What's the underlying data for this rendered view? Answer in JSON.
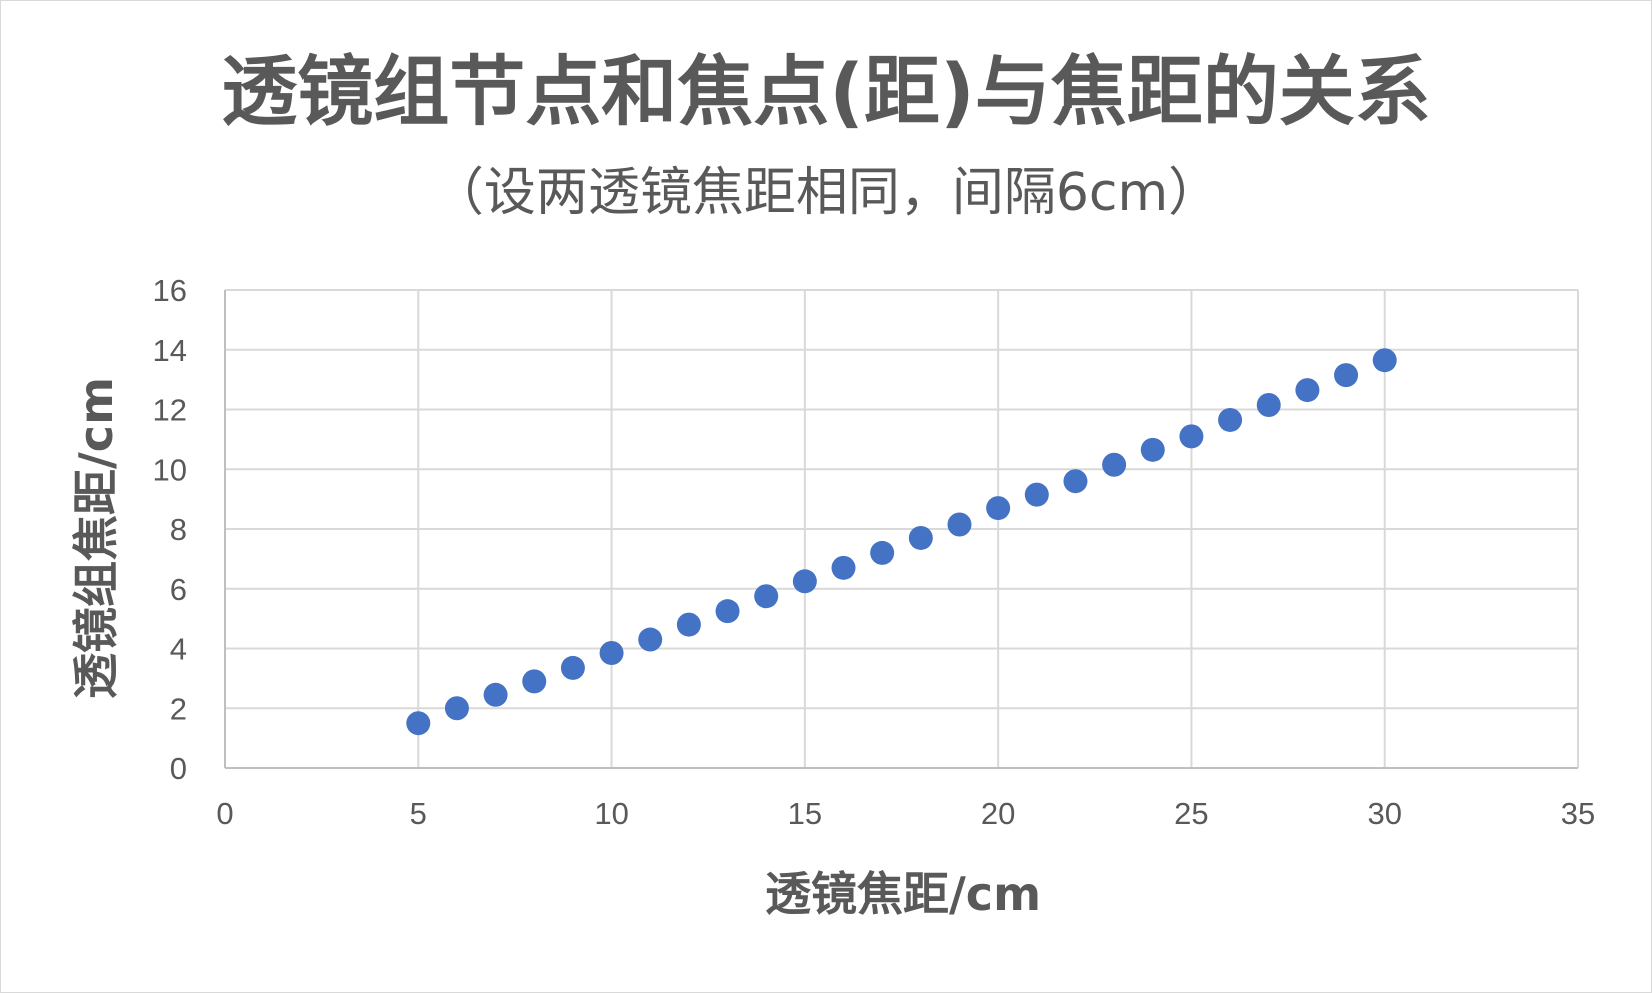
{
  "chart_data": {
    "type": "scatter",
    "title": "透镜组节点和焦点(距)与焦距的关系",
    "subtitle": "（设两透镜焦距相同，间隔6cm）",
    "xlabel": "透镜焦距/cm",
    "ylabel": "透镜组焦距/cm",
    "xlim": [
      0,
      35
    ],
    "ylim": [
      0,
      16
    ],
    "x_ticks": [
      "0",
      "5",
      "10",
      "15",
      "20",
      "25",
      "30",
      "35"
    ],
    "y_ticks": [
      "0",
      "2",
      "4",
      "6",
      "8",
      "10",
      "12",
      "14",
      "16"
    ],
    "grid": true,
    "legend": "none",
    "marker_color": "#4472C4",
    "x": [
      5,
      6,
      7,
      8,
      9,
      10,
      11,
      12,
      13,
      14,
      15,
      16,
      17,
      18,
      19,
      20,
      21,
      22,
      23,
      24,
      25,
      26,
      27,
      28,
      29,
      30
    ],
    "y": [
      1.5,
      2.0,
      2.45,
      2.9,
      3.35,
      3.85,
      4.3,
      4.8,
      5.25,
      5.75,
      6.25,
      6.7,
      7.2,
      7.7,
      8.15,
      8.7,
      9.15,
      9.6,
      10.15,
      10.65,
      11.1,
      11.65,
      12.15,
      12.65,
      13.15,
      13.65
    ]
  }
}
